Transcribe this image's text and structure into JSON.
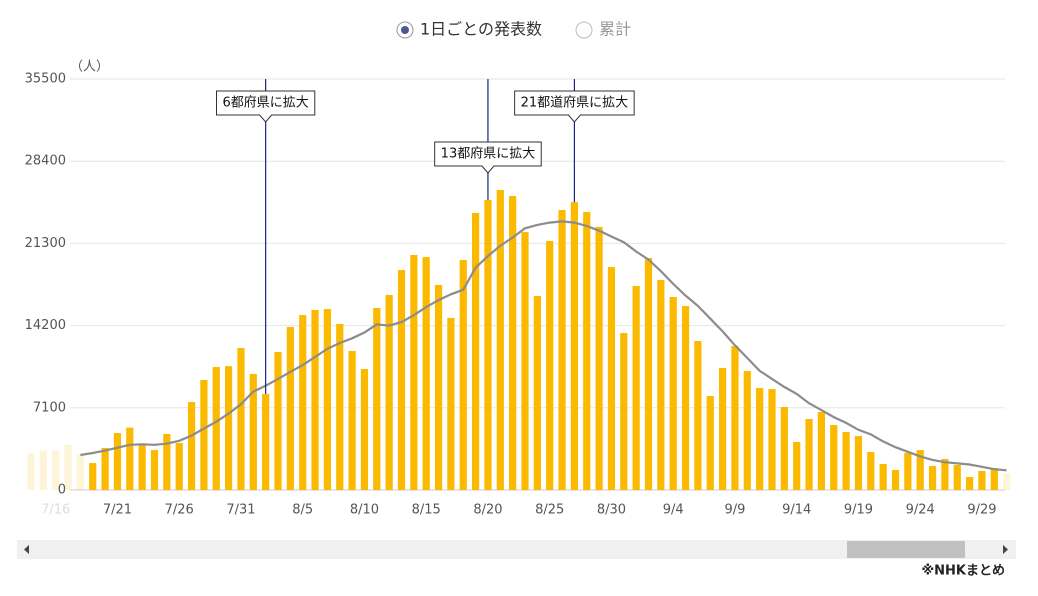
{
  "chart_data": {
    "type": "bar",
    "legend_options": [
      "1日ごとの発表数",
      "累計"
    ],
    "selected_option": 0,
    "y_unit": "（人）",
    "source": "※NHKまとめ",
    "categories": [
      null,
      null,
      "7/16",
      null,
      null,
      null,
      null,
      "7/21",
      null,
      null,
      null,
      null,
      "7/26",
      null,
      null,
      null,
      null,
      "7/31",
      null,
      null,
      null,
      null,
      "8/5",
      null,
      null,
      null,
      null,
      "8/10",
      null,
      null,
      null,
      null,
      "8/15",
      null,
      null,
      null,
      null,
      "8/20",
      null,
      null,
      null,
      null,
      "8/25",
      null,
      null,
      null,
      null,
      "8/30",
      null,
      null,
      null,
      null,
      "9/4",
      null,
      null,
      null,
      null,
      "9/9",
      null,
      null,
      null,
      null,
      "9/14",
      null,
      null,
      null,
      null,
      "9/19",
      null,
      null,
      null,
      null,
      "9/24",
      null,
      null,
      null,
      null,
      "9/29",
      null,
      null
    ],
    "series": [
      {
        "type": "bar",
        "color": "#fbb900",
        "values": [
          3200,
          3400,
          3400,
          3900,
          3100,
          2330,
          3630,
          4920,
          5390,
          3970,
          3450,
          4840,
          4060,
          7600,
          9500,
          10620,
          10700,
          12260,
          10020,
          8290,
          11920,
          14080,
          15110,
          15550,
          15630,
          14340,
          12010,
          10450,
          15720,
          16840,
          19000,
          20300,
          20120,
          17710,
          14860,
          19870,
          23930,
          25050,
          25910,
          25390,
          22280,
          16760,
          21510,
          24180,
          24870,
          24010,
          22720,
          19260,
          13560,
          17620,
          20040,
          18140,
          16670,
          15890,
          12870,
          8120,
          10540,
          12440,
          10280,
          8810,
          8720,
          7170,
          4150,
          6130,
          6740,
          5610,
          5010,
          4660,
          3280,
          2250,
          1730,
          3200,
          3450,
          2070,
          2680,
          2160,
          1120,
          1640,
          1900,
          1470
        ]
      },
      {
        "type": "line",
        "color": "#8c8c8c",
        "values": [
          null,
          null,
          null,
          null,
          3020,
          3200,
          3400,
          3650,
          3900,
          3950,
          3900,
          4000,
          4250,
          4700,
          5300,
          5900,
          6600,
          7400,
          8500,
          9000,
          9600,
          10200,
          10800,
          11500,
          12200,
          12700,
          13100,
          13600,
          14300,
          14200,
          14500,
          15100,
          15800,
          16400,
          16900,
          17300,
          19200,
          20200,
          21100,
          21800,
          22600,
          22900,
          23100,
          23200,
          23100,
          22800,
          22400,
          21900,
          21400,
          20600,
          19900,
          18900,
          17800,
          16800,
          15900,
          14800,
          13700,
          12500,
          11400,
          10300,
          9600,
          8900,
          8300,
          7500,
          6900,
          6300,
          5800,
          5200,
          4800,
          4200,
          3700,
          3300,
          2900,
          2600,
          2400,
          2300,
          2200,
          2000,
          1800,
          1700
        ]
      }
    ],
    "annotations": [
      "6都府県に拡大",
      "13都府県に拡大",
      "21都道府県に拡大"
    ],
    "ylim": [
      0,
      35500
    ],
    "yticks": [
      0,
      7100,
      14200,
      21300,
      28400,
      35500
    ],
    "grid": true
  }
}
